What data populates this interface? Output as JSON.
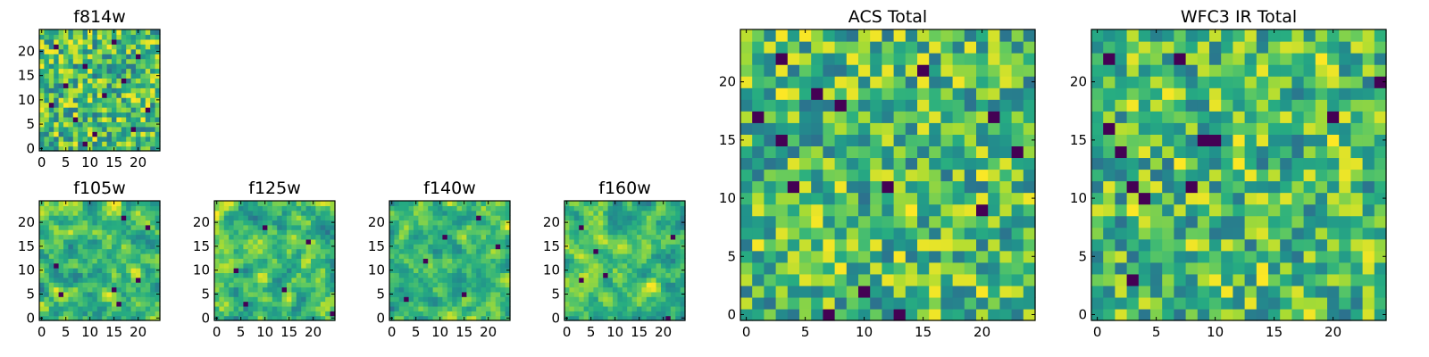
{
  "chart_data": [
    {
      "type": "heatmap",
      "title": "f814w",
      "grid": [
        25,
        25
      ],
      "xlim": [
        -0.5,
        24.5
      ],
      "ylim": [
        -0.5,
        24.5
      ],
      "xticks": [
        0,
        5,
        10,
        15,
        20
      ],
      "yticks": [
        0,
        5,
        10,
        15,
        20
      ],
      "colormap": "viridis",
      "texture": "high-frequency noise, some dark outliers",
      "seed": 11,
      "smoothing": 0,
      "dark_cells": [
        [
          3,
          21
        ],
        [
          9,
          17
        ],
        [
          13,
          11
        ],
        [
          7,
          6
        ],
        [
          17,
          14
        ],
        [
          11,
          3
        ],
        [
          20,
          19
        ],
        [
          5,
          13
        ],
        [
          22,
          8
        ],
        [
          15,
          22
        ],
        [
          2,
          9
        ],
        [
          19,
          4
        ],
        [
          9,
          1
        ]
      ]
    },
    {
      "type": "heatmap",
      "title": "f105w",
      "grid": [
        25,
        25
      ],
      "xlim": [
        -0.5,
        24.5
      ],
      "ylim": [
        -0.5,
        24.5
      ],
      "xticks": [
        0,
        5,
        10,
        15,
        20
      ],
      "yticks": [
        0,
        5,
        10,
        15,
        20
      ],
      "colormap": "viridis",
      "texture": "smooth blotchy",
      "seed": 23,
      "smoothing": 1,
      "dark_cells": [
        [
          17,
          21
        ],
        [
          4,
          5
        ],
        [
          15,
          6
        ],
        [
          16,
          3
        ],
        [
          3,
          11
        ],
        [
          22,
          19
        ],
        [
          20,
          8
        ]
      ]
    },
    {
      "type": "heatmap",
      "title": "f125w",
      "grid": [
        25,
        25
      ],
      "xlim": [
        -0.5,
        24.5
      ],
      "ylim": [
        -0.5,
        24.5
      ],
      "xticks": [
        0,
        5,
        10,
        15,
        20
      ],
      "yticks": [
        0,
        5,
        10,
        15,
        20
      ],
      "colormap": "viridis",
      "texture": "smooth blotchy",
      "seed": 37,
      "smoothing": 1,
      "dark_cells": [
        [
          4,
          10
        ],
        [
          14,
          6
        ],
        [
          24,
          1
        ],
        [
          10,
          19
        ],
        [
          19,
          16
        ],
        [
          6,
          3
        ]
      ]
    },
    {
      "type": "heatmap",
      "title": "f140w",
      "grid": [
        25,
        25
      ],
      "xlim": [
        -0.5,
        24.5
      ],
      "ylim": [
        -0.5,
        24.5
      ],
      "xticks": [
        0,
        5,
        10,
        15,
        20
      ],
      "yticks": [
        0,
        5,
        10,
        15,
        20
      ],
      "colormap": "viridis",
      "texture": "smooth blotchy",
      "seed": 41,
      "smoothing": 1,
      "dark_cells": [
        [
          18,
          21
        ],
        [
          7,
          12
        ],
        [
          15,
          5
        ],
        [
          3,
          4
        ],
        [
          22,
          15
        ],
        [
          11,
          17
        ]
      ]
    },
    {
      "type": "heatmap",
      "title": "f160w",
      "grid": [
        25,
        25
      ],
      "xlim": [
        -0.5,
        24.5
      ],
      "ylim": [
        -0.5,
        24.5
      ],
      "xticks": [
        0,
        5,
        10,
        15,
        20
      ],
      "yticks": [
        0,
        5,
        10,
        15,
        20
      ],
      "colormap": "viridis",
      "texture": "smooth blotchy",
      "seed": 53,
      "smoothing": 1,
      "dark_cells": [
        [
          3,
          19
        ],
        [
          8,
          9
        ],
        [
          3,
          8
        ],
        [
          21,
          0
        ],
        [
          6,
          14
        ],
        [
          22,
          17
        ]
      ]
    },
    {
      "type": "heatmap",
      "title": "ACS Total",
      "grid": [
        25,
        25
      ],
      "xlim": [
        -0.5,
        24.5
      ],
      "ylim": [
        -0.5,
        24.5
      ],
      "xticks": [
        0,
        5,
        10,
        15,
        20
      ],
      "yticks": [
        0,
        5,
        10,
        15,
        20
      ],
      "colormap": "viridis",
      "texture": "blocky noise, bright greens/yellows, scattered dark cells",
      "seed": 67,
      "smoothing": 0,
      "dark_cells": [
        [
          3,
          22
        ],
        [
          6,
          19
        ],
        [
          8,
          18
        ],
        [
          1,
          17
        ],
        [
          15,
          21
        ],
        [
          21,
          17
        ],
        [
          3,
          15
        ],
        [
          4,
          11
        ],
        [
          12,
          11
        ],
        [
          20,
          9
        ],
        [
          10,
          2
        ],
        [
          7,
          0
        ],
        [
          13,
          0
        ],
        [
          23,
          14
        ]
      ]
    },
    {
      "type": "heatmap",
      "title": "WFC3 IR Total",
      "grid": [
        25,
        25
      ],
      "xlim": [
        -0.5,
        24.5
      ],
      "ylim": [
        -0.5,
        24.5
      ],
      "xticks": [
        0,
        5,
        10,
        15,
        20
      ],
      "yticks": [
        0,
        5,
        10,
        15,
        20
      ],
      "colormap": "viridis",
      "texture": "blocky noise, bright greens/yellows, scattered dark cells",
      "seed": 79,
      "smoothing": 0,
      "dark_cells": [
        [
          1,
          22
        ],
        [
          7,
          22
        ],
        [
          24,
          20
        ],
        [
          2,
          14
        ],
        [
          10,
          15
        ],
        [
          8,
          11
        ],
        [
          3,
          11
        ],
        [
          4,
          10
        ],
        [
          1,
          16
        ],
        [
          3,
          3
        ],
        [
          9,
          15
        ],
        [
          20,
          17
        ]
      ]
    }
  ]
}
